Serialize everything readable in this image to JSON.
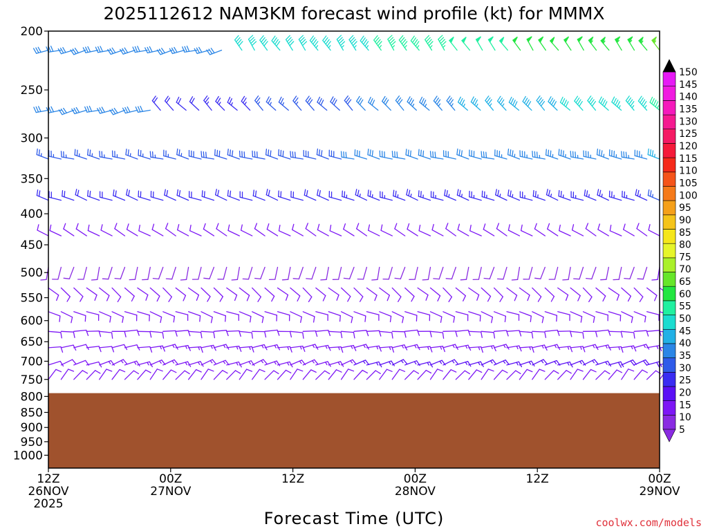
{
  "title": "2025112612 NAM3KM forecast wind profile (kt) for MMMX",
  "credit": "coolwx.com/models",
  "colors": {
    "terrain": "#a0522d",
    "plot_border": "#000000",
    "credit": "#e0303a",
    "scale": [
      "#8a2be2",
      "#7d17f5",
      "#5a10f5",
      "#3a2cf2",
      "#2f5be9",
      "#2b86e6",
      "#22b1e6",
      "#1bdcd0",
      "#20f0a0",
      "#22e640",
      "#66e62a",
      "#aaf02a",
      "#e6f52a",
      "#f5e61a",
      "#f5c41a",
      "#f5a01a",
      "#f57a1a",
      "#f5541a",
      "#f52a1a",
      "#f51a3a",
      "#f51a64",
      "#f51a90",
      "#f51abc",
      "#f01ae0",
      "#e61af5"
    ]
  },
  "chart_data": {
    "type": "wind_barb_time_height",
    "title": "2025112612 NAM3KM forecast wind profile (kt) for MMMX",
    "xlabel": "Forecast Time (UTC)",
    "ylabel": "",
    "units": "kt",
    "x_range_hours": [
      0,
      60
    ],
    "y_range_hpa": [
      200,
      1050
    ],
    "y_scale": "log-pressure",
    "y_ticks": [
      200,
      250,
      300,
      350,
      400,
      450,
      500,
      550,
      600,
      650,
      700,
      750,
      800,
      850,
      900,
      950,
      1000
    ],
    "x_ticks": [
      {
        "hour": 0,
        "lines": [
          "12Z",
          "26NOV",
          "2025"
        ]
      },
      {
        "hour": 12,
        "lines": [
          "00Z",
          "27NOV"
        ]
      },
      {
        "hour": 24,
        "lines": [
          "12Z"
        ]
      },
      {
        "hour": 36,
        "lines": [
          "00Z",
          "28NOV"
        ]
      },
      {
        "hour": 48,
        "lines": [
          "12Z"
        ]
      },
      {
        "hour": 60,
        "lines": [
          "00Z",
          "29NOV"
        ]
      }
    ],
    "surface_pressure_hpa": 790,
    "colorbar": {
      "values": [
        5,
        10,
        15,
        20,
        25,
        30,
        35,
        40,
        45,
        50,
        55,
        60,
        65,
        70,
        75,
        80,
        85,
        90,
        95,
        100,
        105,
        110,
        115,
        120,
        125,
        130,
        135,
        140,
        145,
        150
      ]
    },
    "levels": [
      {
        "p": 215,
        "segments": [
          {
            "h0": 0,
            "h1": 17,
            "dir": 255,
            "spd_start": 30,
            "spd_end": 30
          },
          {
            "h0": 19,
            "h1": 60,
            "dir": 325,
            "spd_start": 40,
            "spd_end": 55
          }
        ]
      },
      {
        "p": 270,
        "segments": [
          {
            "h0": 0,
            "h1": 10,
            "dir": 255,
            "spd_start": 30,
            "spd_end": 30
          },
          {
            "h0": 11,
            "h1": 60,
            "dir": 315,
            "spd_start": 20,
            "spd_end": 45
          }
        ]
      },
      {
        "p": 325,
        "segments": [
          {
            "h0": 0,
            "h1": 60,
            "dir": 285,
            "spd_start": 25,
            "spd_end": 35
          }
        ]
      },
      {
        "p": 380,
        "segments": [
          {
            "h0": 0,
            "h1": 60,
            "dir": 290,
            "spd_start": 20,
            "spd_end": 25
          }
        ]
      },
      {
        "p": 435,
        "segments": [
          {
            "h0": 0,
            "h1": 60,
            "dir": 300,
            "spd_start": 10,
            "spd_end": 12
          }
        ]
      },
      {
        "p": 490,
        "segments": [
          {
            "h0": 0,
            "h1": 60,
            "dir": 195,
            "spd_start": 8,
            "spd_end": 10
          }
        ]
      },
      {
        "p": 530,
        "segments": [
          {
            "h0": 0,
            "h1": 60,
            "dir": 130,
            "spd_start": 10,
            "spd_end": 12
          }
        ]
      },
      {
        "p": 580,
        "segments": [
          {
            "h0": 0,
            "h1": 60,
            "dir": 110,
            "spd_start": 10,
            "spd_end": 12
          }
        ]
      },
      {
        "p": 625,
        "segments": [
          {
            "h0": 0,
            "h1": 60,
            "dir": 90,
            "spd_start": 10,
            "spd_end": 12
          }
        ]
      },
      {
        "p": 665,
        "segments": [
          {
            "h0": 0,
            "h1": 60,
            "dir": 80,
            "spd_start": 12,
            "spd_end": 15
          }
        ]
      },
      {
        "p": 710,
        "segments": [
          {
            "h0": 0,
            "h1": 60,
            "dir": 70,
            "spd_start": 12,
            "spd_end": 18
          }
        ]
      },
      {
        "p": 750,
        "segments": [
          {
            "h0": 0,
            "h1": 60,
            "dir": 40,
            "spd_start": 10,
            "spd_end": 12
          }
        ]
      }
    ]
  }
}
